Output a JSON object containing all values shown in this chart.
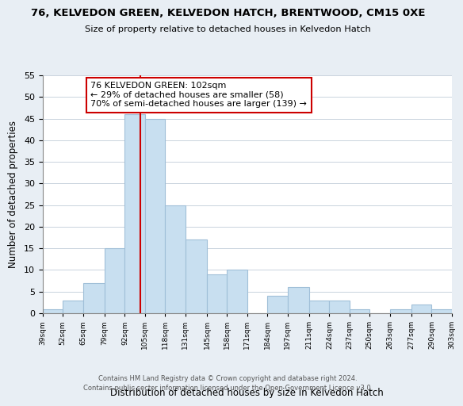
{
  "title": "76, KELVEDON GREEN, KELVEDON HATCH, BRENTWOOD, CM15 0XE",
  "subtitle": "Size of property relative to detached houses in Kelvedon Hatch",
  "xlabel": "Distribution of detached houses by size in Kelvedon Hatch",
  "ylabel": "Number of detached properties",
  "bin_edges": [
    39,
    52,
    65,
    79,
    92,
    105,
    118,
    131,
    145,
    158,
    171,
    184,
    197,
    211,
    224,
    237,
    250,
    263,
    277,
    290,
    303
  ],
  "bin_labels": [
    "39sqm",
    "52sqm",
    "65sqm",
    "79sqm",
    "92sqm",
    "105sqm",
    "118sqm",
    "131sqm",
    "145sqm",
    "158sqm",
    "171sqm",
    "184sqm",
    "197sqm",
    "211sqm",
    "224sqm",
    "237sqm",
    "250sqm",
    "263sqm",
    "277sqm",
    "290sqm",
    "303sqm"
  ],
  "counts": [
    1,
    3,
    7,
    15,
    46,
    45,
    25,
    17,
    9,
    10,
    0,
    4,
    6,
    3,
    3,
    1,
    0,
    1,
    2,
    1,
    0
  ],
  "bar_color": "#c8dff0",
  "bar_edge_color": "#a0bfd8",
  "vline_x": 102,
  "vline_color": "#cc0000",
  "annotation_line1": "76 KELVEDON GREEN: 102sqm",
  "annotation_line2": "← 29% of detached houses are smaller (58)",
  "annotation_line3": "70% of semi-detached houses are larger (139) →",
  "annotation_box_color": "white",
  "annotation_box_edge": "#cc0000",
  "ylim": [
    0,
    55
  ],
  "yticks": [
    0,
    5,
    10,
    15,
    20,
    25,
    30,
    35,
    40,
    45,
    50,
    55
  ],
  "footer1": "Contains HM Land Registry data © Crown copyright and database right 2024.",
  "footer2": "Contains public sector information licensed under the Open Government Licence v3.0.",
  "background_color": "#e8eef4",
  "plot_bg_color": "#ffffff",
  "grid_color": "#c0ccd8"
}
